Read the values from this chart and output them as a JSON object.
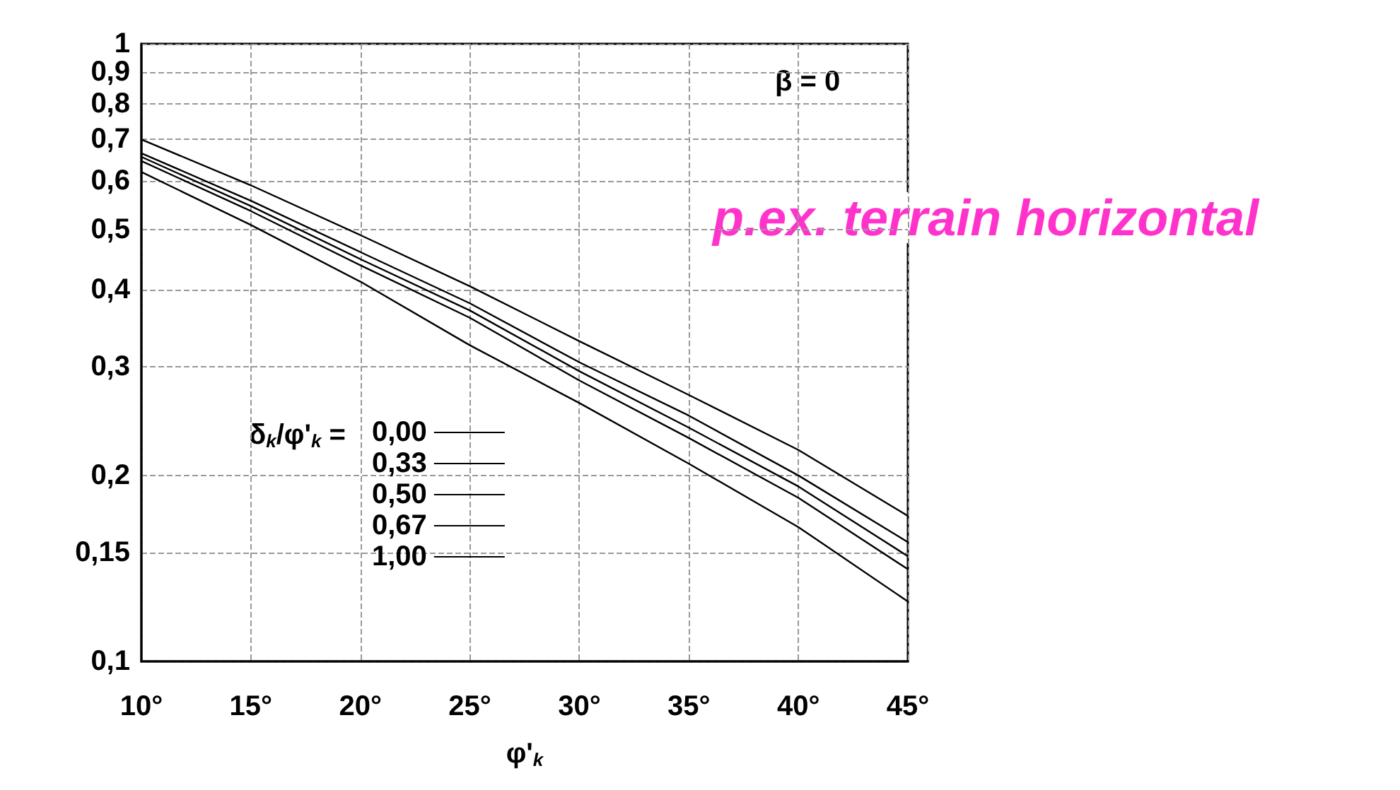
{
  "chart_data": {
    "type": "line",
    "xlabel": "φ'$_{k}$",
    "legend_title": "δ$_{k}$/φ'$_{k}$ =",
    "annotations": [
      "β = 0",
      "p.ex. terrain horizontal"
    ],
    "x": [
      10,
      15,
      20,
      25,
      30,
      35,
      40,
      45
    ],
    "series": [
      {
        "name": "0,00",
        "color": "#000000",
        "values": [
          0.7,
          0.59,
          0.49,
          0.405,
          0.33,
          0.27,
          0.22,
          0.172
        ]
      },
      {
        "name": "0,33",
        "color": "#000000",
        "values": [
          0.665,
          0.557,
          0.46,
          0.38,
          0.305,
          0.25,
          0.2,
          0.156
        ]
      },
      {
        "name": "0,50",
        "color": "#000000",
        "values": [
          0.656,
          0.546,
          0.448,
          0.37,
          0.295,
          0.239,
          0.192,
          0.148
        ]
      },
      {
        "name": "0,67",
        "color": "#000000",
        "values": [
          0.646,
          0.536,
          0.438,
          0.36,
          0.285,
          0.23,
          0.184,
          0.141
        ]
      },
      {
        "name": "1,00",
        "color": "#000000",
        "values": [
          0.62,
          0.509,
          0.412,
          0.325,
          0.262,
          0.209,
          0.165,
          0.125
        ]
      }
    ],
    "xlim": [
      10,
      45
    ],
    "xticks": [
      {
        "value": 10,
        "label": "10°"
      },
      {
        "value": 15,
        "label": "15°"
      },
      {
        "value": 20,
        "label": "20°"
      },
      {
        "value": 25,
        "label": "25°"
      },
      {
        "value": 30,
        "label": "30°"
      },
      {
        "value": 35,
        "label": "35°"
      },
      {
        "value": 40,
        "label": "40°"
      },
      {
        "value": 45,
        "label": "45°"
      }
    ],
    "ylim": [
      0.1,
      1
    ],
    "yticks": [
      {
        "value": 0.1,
        "label": "0,1"
      },
      {
        "value": 0.15,
        "label": "0,15"
      },
      {
        "value": 0.2,
        "label": "0,2"
      },
      {
        "value": 0.3,
        "label": "0,3"
      },
      {
        "value": 0.4,
        "label": "0,4"
      },
      {
        "value": 0.5,
        "label": "0,5"
      },
      {
        "value": 0.6,
        "label": "0,6"
      },
      {
        "value": 0.7,
        "label": "0,7"
      },
      {
        "value": 0.8,
        "label": "0,8"
      },
      {
        "value": 0.9,
        "label": "0,9"
      },
      1
    ],
    "log": "y",
    "grid": true,
    "legend": "center",
    "marker": "none",
    "line_style": "solid"
  }
}
